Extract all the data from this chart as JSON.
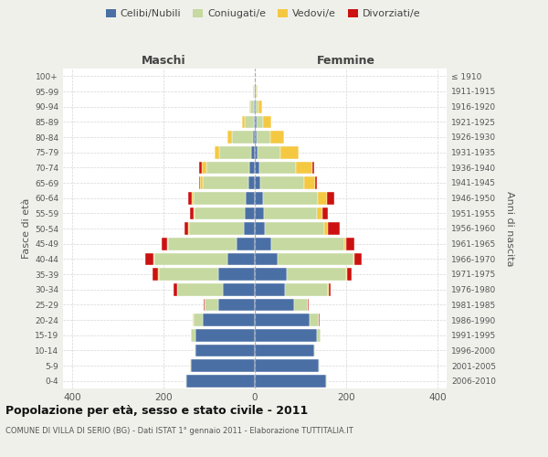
{
  "age_groups": [
    "0-4",
    "5-9",
    "10-14",
    "15-19",
    "20-24",
    "25-29",
    "30-34",
    "35-39",
    "40-44",
    "45-49",
    "50-54",
    "55-59",
    "60-64",
    "65-69",
    "70-74",
    "75-79",
    "80-84",
    "85-89",
    "90-94",
    "95-99",
    "100+"
  ],
  "birth_years": [
    "2006-2010",
    "2001-2005",
    "1996-2000",
    "1991-1995",
    "1986-1990",
    "1981-1985",
    "1976-1980",
    "1971-1975",
    "1966-1970",
    "1961-1965",
    "1956-1960",
    "1951-1955",
    "1946-1950",
    "1941-1945",
    "1936-1940",
    "1931-1935",
    "1926-1930",
    "1921-1925",
    "1916-1920",
    "1911-1915",
    "≤ 1910"
  ],
  "male": {
    "celibi": [
      150,
      140,
      130,
      130,
      115,
      80,
      70,
      80,
      60,
      40,
      24,
      22,
      20,
      15,
      12,
      8,
      5,
      3,
      2,
      1,
      0
    ],
    "coniugati": [
      2,
      2,
      2,
      10,
      20,
      30,
      100,
      130,
      160,
      150,
      120,
      110,
      115,
      100,
      95,
      70,
      45,
      20,
      8,
      2,
      0
    ],
    "vedovi": [
      0,
      0,
      0,
      0,
      1,
      1,
      1,
      2,
      2,
      2,
      2,
      2,
      3,
      5,
      10,
      10,
      10,
      5,
      3,
      1,
      0
    ],
    "divorziati": [
      0,
      0,
      0,
      0,
      1,
      2,
      8,
      12,
      18,
      12,
      8,
      8,
      8,
      3,
      5,
      0,
      0,
      0,
      0,
      0,
      0
    ]
  },
  "female": {
    "nubili": [
      155,
      140,
      130,
      135,
      120,
      85,
      65,
      70,
      50,
      35,
      22,
      20,
      18,
      12,
      10,
      5,
      4,
      3,
      2,
      1,
      0
    ],
    "coniugate": [
      2,
      2,
      2,
      8,
      20,
      30,
      95,
      130,
      165,
      160,
      130,
      115,
      120,
      95,
      80,
      50,
      30,
      15,
      5,
      2,
      0
    ],
    "vedove": [
      0,
      0,
      0,
      0,
      0,
      1,
      1,
      2,
      3,
      5,
      8,
      12,
      20,
      25,
      35,
      40,
      30,
      18,
      8,
      2,
      0
    ],
    "divorziate": [
      0,
      0,
      0,
      0,
      1,
      2,
      5,
      10,
      15,
      18,
      25,
      12,
      15,
      3,
      5,
      0,
      0,
      0,
      0,
      0,
      0
    ]
  },
  "colors": {
    "celibi_nubili": "#4a6fa5",
    "coniugati": "#c5d9a0",
    "vedovi": "#f5c842",
    "divorziati": "#cc1111"
  },
  "xlim": 420,
  "title": "Popolazione per età, sesso e stato civile - 2011",
  "subtitle": "COMUNE DI VILLA DI SERIO (BG) - Dati ISTAT 1° gennaio 2011 - Elaborazione TUTTITALIA.IT",
  "ylabel_left": "Fasce di età",
  "ylabel_right": "Anni di nascita",
  "xlabel_left": "Maschi",
  "xlabel_right": "Femmine",
  "bg_color": "#f0f0eb",
  "plot_bg": "#ffffff",
  "grid_color": "#cccccc"
}
